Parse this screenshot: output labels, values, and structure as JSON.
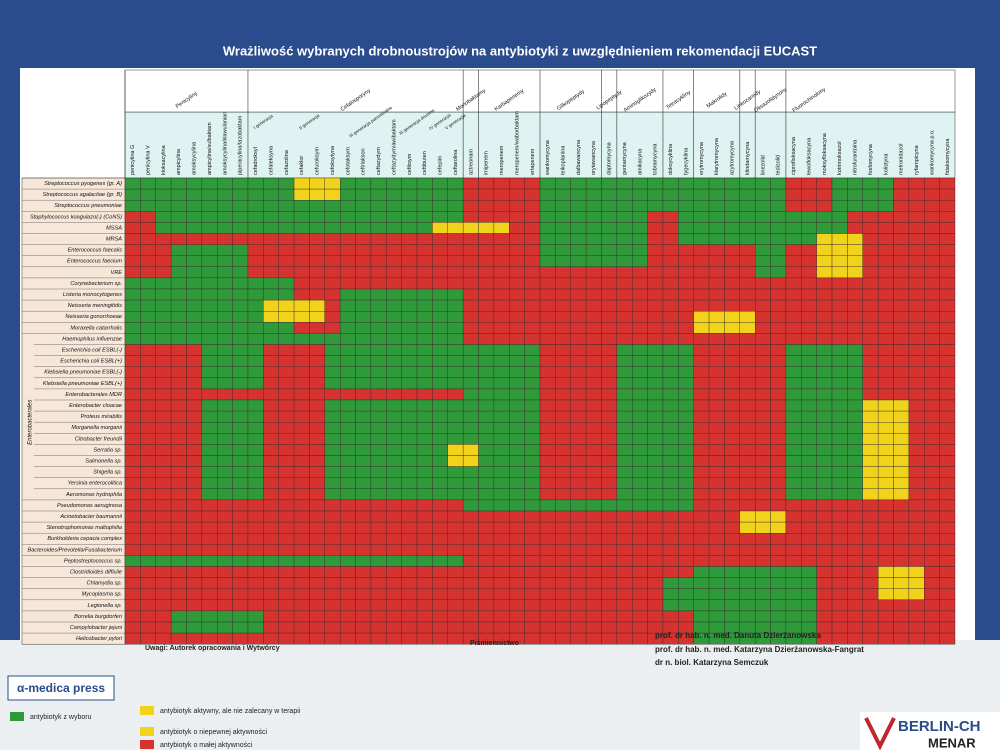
{
  "header": {
    "title": "Wrażliwość wybranych drobnoustrojów na antybiotyki z uwzględnieniem rekomendacji EUCAST"
  },
  "table": {
    "groups": [
      "Penicyliny",
      "Cefalosporyny",
      "Monobaktamy",
      "Karbapenemy",
      "Glikopeptydy",
      "Lipopeptydy",
      "Aminoglikozydy",
      "Tetracykliny",
      "Makrolidy",
      "Linkozamidy",
      "Oksazolidynony",
      "Fluorochinolony"
    ],
    "subgroups": [
      "I generacja",
      "II generacja",
      "III generacja parenteralne",
      "III generacja doustne",
      "IV generacja",
      "V generacja"
    ],
    "columns": [
      "penicylina G",
      "penicylina V",
      "kloksacylina",
      "ampicylina",
      "amoksycylina",
      "ampicylina/sulbaktam",
      "amoksycylina/klawulanian",
      "piperacylina/tazobaktam",
      "cefadroksyl",
      "cefaleksyna",
      "cefazolina",
      "cefaklor",
      "cefuroksym",
      "cefoksytyna",
      "cefotaksym",
      "ceftriakson",
      "ceftazydym",
      "ceftazydym/awibaktam",
      "cefiksym",
      "ceftibuten",
      "cefepim",
      "ceftarolina",
      "aztreonam",
      "imipenem",
      "meropenem",
      "meropenem/waborbaktam",
      "ertapenem",
      "wankomycyna",
      "teikoplanina",
      "dalbawancyna",
      "orytawancyna",
      "daptomycyna",
      "gentamycyna",
      "amikacyna",
      "tobramycyna",
      "doksycyklina",
      "tygecyklina",
      "erytromycyna",
      "klarytromycyna",
      "azytromycyna",
      "klindamycyna",
      "linezolid",
      "tedizolid",
      "ciprofloksacyna",
      "lewofloksacyna",
      "moksyfloksacyna",
      "kotrimoksazol",
      "nitrofurantoina",
      "fosfomycyna",
      "kolistyna",
      "metronidazol",
      "ryfampicyna",
      "wankomycyna p.o.",
      "fidaksomycyna"
    ],
    "row_group": "Enterobacterales",
    "rows": [
      "Streptococcus pyogenes (gr. A)",
      "Streptococcus agalactiae (gr. B)",
      "Streptococcus pneumoniae",
      "Staphylococcus koagulazo(-) (CoNS)",
      "MSSA",
      "MRSA",
      "Enterococcus faecalis",
      "Enterococcus faecium",
      "VRE",
      "Corynebacterium sp.",
      "Listeria monocytogenes",
      "Neisseria meningitidis",
      "Neisseria gonorrhoeae",
      "Moraxella catarrhalis",
      "Haemophilus influenzae",
      "Escherichia coli ESBL(-)",
      "Escherichia coli ESBL(+)",
      "Klebsiella pneumoniae ESBL(-)",
      "Klebsiella pneumoniae ESBL(+)",
      "Enterobacterales MDR",
      "Enterobacter cloacae",
      "Proteus mirabilis",
      "Morganella morganii",
      "Citrobacter freundii",
      "Serratia sp.",
      "Salmonella sp.",
      "Shigella sp.",
      "Yersinia enterocolitica",
      "Aeromonas hydrophila",
      "Pseudomonas aeruginosa",
      "Acinetobacter baumannii",
      "Stenotrophomonas maltophilia",
      "Burkholderia cepacia complex",
      "Bacteroides/Prevotella/Fusobacterium",
      "Peptostreptococcus sp.",
      "Clostridioides difficile",
      "Chlamydia sp.",
      "Mycoplasma sp.",
      "Legionella sp.",
      "Borrelia burgdorferi",
      "Campylobacter jejuni",
      "Helicobacter pylori"
    ]
  },
  "legend": [
    "antybiotyk z wyboru",
    "antybiotyk aktywny, ale nie zalecany w terapii",
    "antybiotyk o niepewnej aktywności",
    "antybiotyk o małej aktywności"
  ],
  "notes": {
    "remarks": "Uwagi: Autorek opracowania i Wytwórcy",
    "references": "Piśmiennictwo"
  },
  "authors": [
    "prof. dr hab. n. med. Danuta Dzierżanowska",
    "prof. dr hab. n. med. Katarzyna Dzierżanowska-Fangrat",
    "dr n. biol. Katarzyna Semczuk"
  ],
  "publisher": "α-medica press",
  "sponsor": [
    "BERLIN-CH",
    "MENAR"
  ]
}
